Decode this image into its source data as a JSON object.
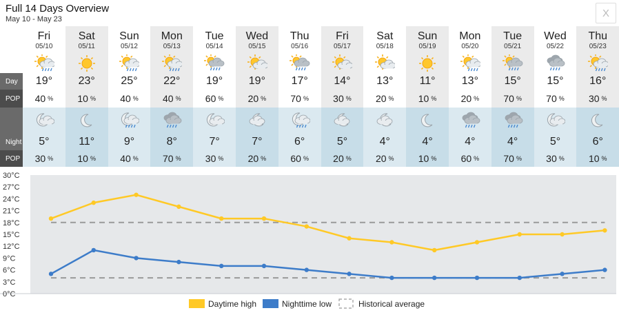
{
  "header": {
    "title": "Full 14 Days Overview",
    "subtitle": "May 10 - May 23",
    "close_label": "X"
  },
  "labels": {
    "day": "Day",
    "pop": "POP",
    "night": "Night",
    "pop2": "POP"
  },
  "pop_unit": "%",
  "days": [
    {
      "name": "Fri",
      "date": "05/10",
      "day_icon": "partly-cloudy-showers-icon",
      "high": "19°",
      "day_pop": "40",
      "night_icon": "cloudy-moon-icon",
      "low": "5°",
      "night_pop": "30"
    },
    {
      "name": "Sat",
      "date": "05/11",
      "day_icon": "sunny-icon",
      "high": "23°",
      "day_pop": "10",
      "night_icon": "clear-moon-icon",
      "low": "11°",
      "night_pop": "10"
    },
    {
      "name": "Sun",
      "date": "05/12",
      "day_icon": "partly-cloudy-showers-icon",
      "high": "25°",
      "day_pop": "40",
      "night_icon": "cloudy-moon-showers-icon",
      "low": "9°",
      "night_pop": "40"
    },
    {
      "name": "Mon",
      "date": "05/13",
      "day_icon": "partly-cloudy-showers-icon",
      "high": "22°",
      "day_pop": "40",
      "night_icon": "rain-cloud-icon",
      "low": "8°",
      "night_pop": "70"
    },
    {
      "name": "Tue",
      "date": "05/14",
      "day_icon": "sun-rain-cloud-icon",
      "high": "19°",
      "day_pop": "60",
      "night_icon": "cloudy-moon-icon",
      "low": "7°",
      "night_pop": "30"
    },
    {
      "name": "Wed",
      "date": "05/15",
      "day_icon": "partly-cloudy-icon",
      "high": "19°",
      "day_pop": "20",
      "night_icon": "partly-cloudy-moon-icon",
      "low": "7°",
      "night_pop": "20"
    },
    {
      "name": "Thu",
      "date": "05/16",
      "day_icon": "sun-rain-cloud-icon",
      "high": "17°",
      "day_pop": "70",
      "night_icon": "cloudy-moon-showers-icon",
      "low": "6°",
      "night_pop": "60"
    },
    {
      "name": "Fri",
      "date": "05/17",
      "day_icon": "partly-cloudy-icon",
      "high": "14°",
      "day_pop": "30",
      "night_icon": "partly-cloudy-moon-icon",
      "low": "5°",
      "night_pop": "20"
    },
    {
      "name": "Sat",
      "date": "05/18",
      "day_icon": "partly-cloudy-icon",
      "high": "13°",
      "day_pop": "20",
      "night_icon": "partly-cloudy-moon-icon",
      "low": "4°",
      "night_pop": "20"
    },
    {
      "name": "Sun",
      "date": "05/19",
      "day_icon": "sunny-icon",
      "high": "11°",
      "day_pop": "10",
      "night_icon": "clear-moon-icon",
      "low": "4°",
      "night_pop": "10"
    },
    {
      "name": "Mon",
      "date": "05/20",
      "day_icon": "partly-cloudy-showers-icon",
      "high": "13°",
      "day_pop": "20",
      "night_icon": "rain-cloud-icon",
      "low": "4°",
      "night_pop": "60"
    },
    {
      "name": "Tue",
      "date": "05/21",
      "day_icon": "sun-rain-cloud-icon",
      "high": "15°",
      "day_pop": "70",
      "night_icon": "rain-cloud-icon",
      "low": "4°",
      "night_pop": "70"
    },
    {
      "name": "Wed",
      "date": "05/22",
      "day_icon": "rain-cloud-icon",
      "high": "15°",
      "day_pop": "70",
      "night_icon": "cloudy-moon-icon",
      "low": "5°",
      "night_pop": "30"
    },
    {
      "name": "Thu",
      "date": "05/23",
      "day_icon": "partly-cloudy-showers-icon",
      "high": "16°",
      "day_pop": "30",
      "night_icon": "clear-moon-icon",
      "low": "6°",
      "night_pop": "10"
    }
  ],
  "chart_data": {
    "type": "line",
    "ylim": [
      0,
      30
    ],
    "ytick_labels": [
      "0°C",
      "3°C",
      "6°C",
      "9°C",
      "12°C",
      "15°C",
      "18°C",
      "21°C",
      "24°C",
      "27°C",
      "30°C"
    ],
    "ytick_values": [
      0,
      3,
      6,
      9,
      12,
      15,
      18,
      21,
      24,
      27,
      30
    ],
    "grid": false,
    "legend_placement": "bottom-center",
    "series": [
      {
        "name": "Daytime high",
        "color": "#ffc926",
        "values": [
          19,
          23,
          25,
          22,
          19,
          19,
          17,
          14,
          13,
          11,
          13,
          15,
          15,
          16
        ]
      },
      {
        "name": "Nighttime low",
        "color": "#3d7cc9",
        "values": [
          5,
          11,
          9,
          8,
          7,
          7,
          6,
          5,
          4,
          4,
          4,
          4,
          5,
          6
        ]
      },
      {
        "name": "Historical average",
        "color": "#999999",
        "style": "dashed",
        "values": [
          18,
          4
        ]
      }
    ]
  },
  "colors": {
    "label_bg": "#6a6a6a",
    "label_bg_dark": "#4c4c4c",
    "day_alt_bg": "#ebebeb",
    "night_bg": "#dbe9f0",
    "night_alt_bg": "#c7dde8",
    "chart_bg": "#e6e8ea"
  }
}
